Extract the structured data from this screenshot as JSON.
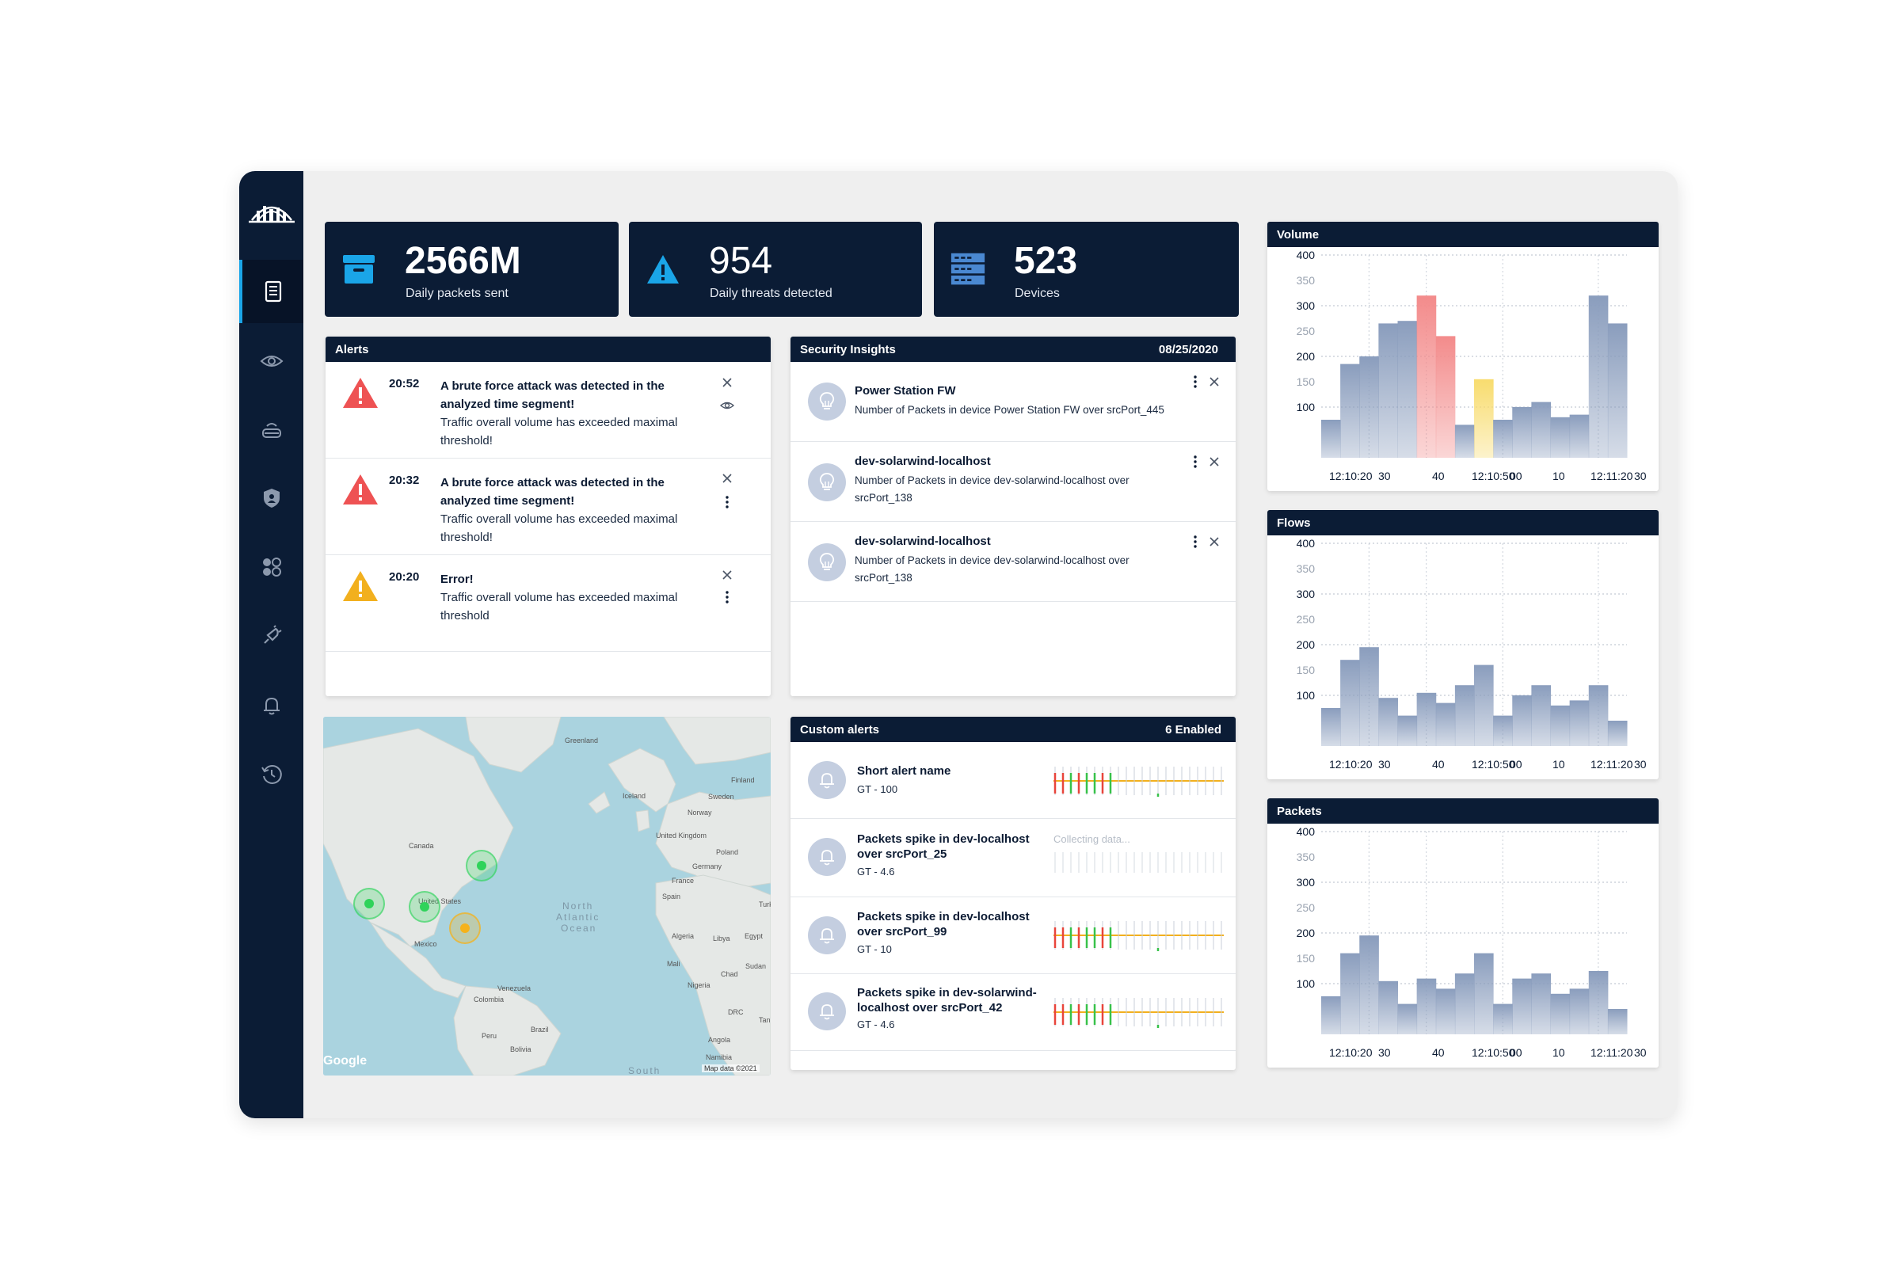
{
  "stats": [
    {
      "value": "2566M",
      "label": "Daily packets sent",
      "icon": "archive-box-icon"
    },
    {
      "value": "954",
      "label": "Daily threats detected",
      "icon": "warning-triangle-icon"
    },
    {
      "value": "523",
      "label": "Devices",
      "icon": "server-rack-icon"
    }
  ],
  "alerts": {
    "title": "Alerts",
    "items": [
      {
        "time": "20:52",
        "title": "A brute force attack was detected in the analyzed time segment!",
        "desc": "Traffic overall volume has exceeded maximal threshold!",
        "severity": "critical"
      },
      {
        "time": "20:32",
        "title": "A brute force attack was detected in the analyzed time segment!",
        "desc": "Traffic overall volume has exceeded maximal threshold!",
        "severity": "critical"
      },
      {
        "time": "20:20",
        "title": "Error!",
        "desc": "Traffic overall volume has exceeded maximal threshold",
        "severity": "warning"
      }
    ]
  },
  "insights": {
    "title": "Security Insights",
    "date": "08/25/2020",
    "items": [
      {
        "name": "Power Station FW",
        "text": "Number of Packets in device Power Station FW over srcPort_445"
      },
      {
        "name": "dev-solarwind-localhost",
        "text": "Number of Packets in device dev-solarwind-localhost over srcPort_138"
      },
      {
        "name": "dev-solarwind-localhost",
        "text": "Number of Packets in device dev-solarwind-localhost over srcPort_138"
      }
    ]
  },
  "custom_alerts": {
    "title": "Custom alerts",
    "enabled": "6 Enabled",
    "items": [
      {
        "name": "Short alert name",
        "sub": "GT - 100",
        "state": "data"
      },
      {
        "name": "Packets spike in dev-localhost over srcPort_25",
        "sub": "GT - 4.6",
        "state": "collecting",
        "collecting_text": "Collecting data..."
      },
      {
        "name": "Packets spike in dev-localhost over srcPort_99",
        "sub": "GT - 10",
        "state": "data"
      },
      {
        "name": "Packets spike in dev-solarwind-localhost over srcPort_42",
        "sub": "GT - 4.6",
        "state": "data"
      }
    ]
  },
  "map": {
    "labels": {
      "greenland": "Greenland",
      "iceland": "Iceland",
      "finland": "Finland",
      "sweden": "Sweden",
      "norway": "Norway",
      "uk": "United Kingdom",
      "poland": "Poland",
      "germany": "Germany",
      "france": "France",
      "spain": "Spain",
      "turkey": "Turk",
      "canada": "Canada",
      "usa": "United States",
      "mexico": "Mexico",
      "ocean1": "North",
      "ocean2": "Atlantic",
      "ocean3": "Ocean",
      "algeria": "Algeria",
      "libya": "Libya",
      "egypt": "Egypt",
      "mali": "Mali",
      "chad": "Chad",
      "sudan": "Sudan",
      "niger": "Nigeria",
      "venezuela": "Venezuela",
      "colombia": "Colombia",
      "peru": "Peru",
      "brazil": "Brazil",
      "bolivia": "Bolivia",
      "drc": "DRC",
      "angola": "Angola",
      "namibia": "Namibia",
      "tan": "Tan",
      "south": "South",
      "google": "Google",
      "attrib": "Map data ©2021"
    },
    "markers": [
      {
        "status": "ok",
        "color": "#2fd35a"
      },
      {
        "status": "ok",
        "color": "#2fd35a"
      },
      {
        "status": "ok",
        "color": "#2fd35a"
      },
      {
        "status": "warning",
        "color": "#f5b21a"
      }
    ]
  },
  "colors": {
    "navy": "#0b1c35",
    "accent": "#1aa5e8",
    "critical": "#ee5253",
    "warning": "#f2b01e"
  },
  "chart_data": [
    {
      "type": "bar",
      "title": "Volume",
      "y_ticks": [
        "400",
        "350",
        "300",
        "250",
        "200",
        "150",
        "100"
      ],
      "x_ticks": [
        "12:10:20",
        "30",
        "40",
        "12:10:50",
        "00",
        "10",
        "12:11:20",
        "30"
      ],
      "ylim": [
        0,
        400
      ],
      "values": [
        75,
        185,
        200,
        265,
        270,
        320,
        240,
        65,
        155,
        75,
        100,
        110,
        80,
        85,
        320,
        265
      ],
      "highlight": {
        "5": "#f38b8b",
        "6": "#f38b8b",
        "8": "#f8dc6e"
      }
    },
    {
      "type": "bar",
      "title": "Flows",
      "y_ticks": [
        "400",
        "350",
        "300",
        "250",
        "200",
        "150",
        "100"
      ],
      "x_ticks": [
        "12:10:20",
        "30",
        "40",
        "12:10:50",
        "00",
        "10",
        "12:11:20",
        "30"
      ],
      "ylim": [
        0,
        400
      ],
      "values": [
        75,
        170,
        195,
        95,
        60,
        105,
        85,
        120,
        160,
        60,
        100,
        120,
        80,
        90,
        120,
        50
      ]
    },
    {
      "type": "bar",
      "title": "Packets",
      "y_ticks": [
        "400",
        "350",
        "300",
        "250",
        "200",
        "150",
        "100"
      ],
      "x_ticks": [
        "12:10:20",
        "30",
        "40",
        "12:10:50",
        "00",
        "10",
        "12:11:20",
        "30"
      ],
      "ylim": [
        0,
        400
      ],
      "values": [
        75,
        160,
        195,
        105,
        60,
        110,
        90,
        120,
        160,
        60,
        110,
        120,
        80,
        90,
        125,
        50
      ]
    }
  ]
}
